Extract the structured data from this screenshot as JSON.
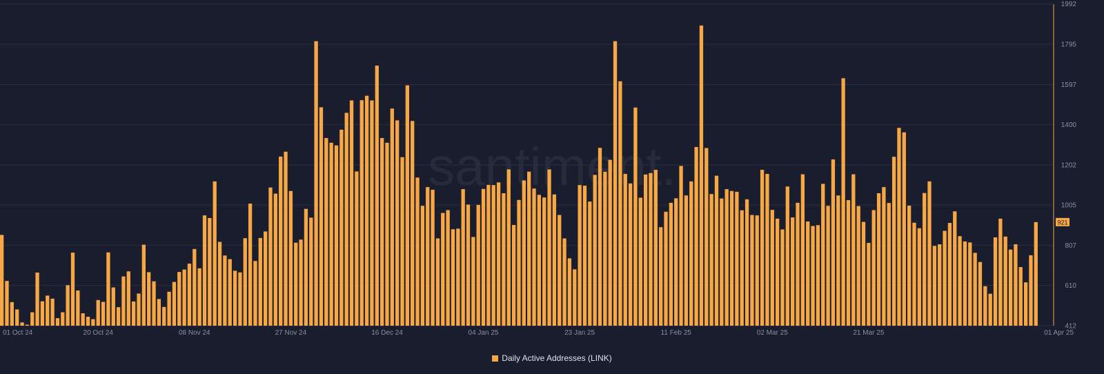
{
  "chart_data": {
    "type": "bar",
    "title": "",
    "xlabel": "",
    "ylabel": "",
    "ylim": [
      412,
      1992
    ],
    "yticks": [
      412,
      610,
      807,
      1005,
      1202,
      1400,
      1597,
      1795,
      1992
    ],
    "x_tick_labels": [
      "01 Oct 24",
      "20 Oct 24",
      "08 Nov 24",
      "27 Nov 24",
      "16 Dec 24",
      "04 Jan 25",
      "23 Jan 25",
      "11 Feb 25",
      "02 Mar 25",
      "21 Mar 25",
      "01 Apr 25"
    ],
    "last_value_label": "921",
    "grid": true,
    "legend_position": "bottom",
    "watermark": "santiment.",
    "series": [
      {
        "name": "Daily Active Addresses (LINK)",
        "color": "#f7a744",
        "values": [
          858,
          632,
          528,
          492,
          428,
          417,
          478,
          673,
          532,
          560,
          545,
          449,
          478,
          611,
          771,
          585,
          473,
          456,
          444,
          538,
          529,
          772,
          600,
          503,
          654,
          679,
          531,
          570,
          810,
          675,
          630,
          543,
          504,
          579,
          627,
          676,
          688,
          717,
          789,
          694,
          954,
          941,
          1121,
          824,
          757,
          739,
          682,
          674,
          842,
          1012,
          730,
          843,
          875,
          1091,
          1061,
          1243,
          1267,
          1074,
          820,
          835,
          986,
          943,
          1810,
          1485,
          1334,
          1311,
          1298,
          1375,
          1458,
          1519,
          1170,
          1520,
          1542,
          1519,
          1690,
          1334,
          1311,
          1479,
          1421,
          1240,
          1593,
          1418,
          1140,
          1001,
          1093,
          1080,
          841,
          966,
          980,
          886,
          889,
          1083,
          1007,
          848,
          1006,
          1084,
          1104,
          1103,
          1116,
          1063,
          1180,
          907,
          1030,
          1126,
          1169,
          1086,
          1055,
          1042,
          1180,
          1057,
          956,
          841,
          743,
          689,
          1103,
          1100,
          1022,
          1153,
          1286,
          1168,
          1227,
          1810,
          1613,
          1158,
          1111,
          1484,
          1041,
          1155,
          1162,
          1178,
          896,
          972,
          1016,
          1038,
          1197,
          1052,
          1121,
          1290,
          1887,
          1285,
          1059,
          1149,
          1037,
          1083,
          1074,
          1070,
          979,
          1033,
          956,
          954,
          1178,
          1158,
          981,
          938,
          885,
          1096,
          944,
          1016,
          1156,
          924,
          902,
          906,
          1109,
          1001,
          1229,
          1052,
          1628,
          1029,
          1156,
          1000,
          922,
          819,
          980,
          1063,
          1093,
          1015,
          1242,
          1384,
          1362,
          1002,
          918,
          891,
          1064,
          1121,
          804,
          812,
          878,
          917,
          974,
          852,
          826,
          821,
          770,
          725,
          606,
          569,
          846,
          938,
          850,
          786,
          812,
          700,
          625,
          758,
          921
        ]
      }
    ]
  }
}
